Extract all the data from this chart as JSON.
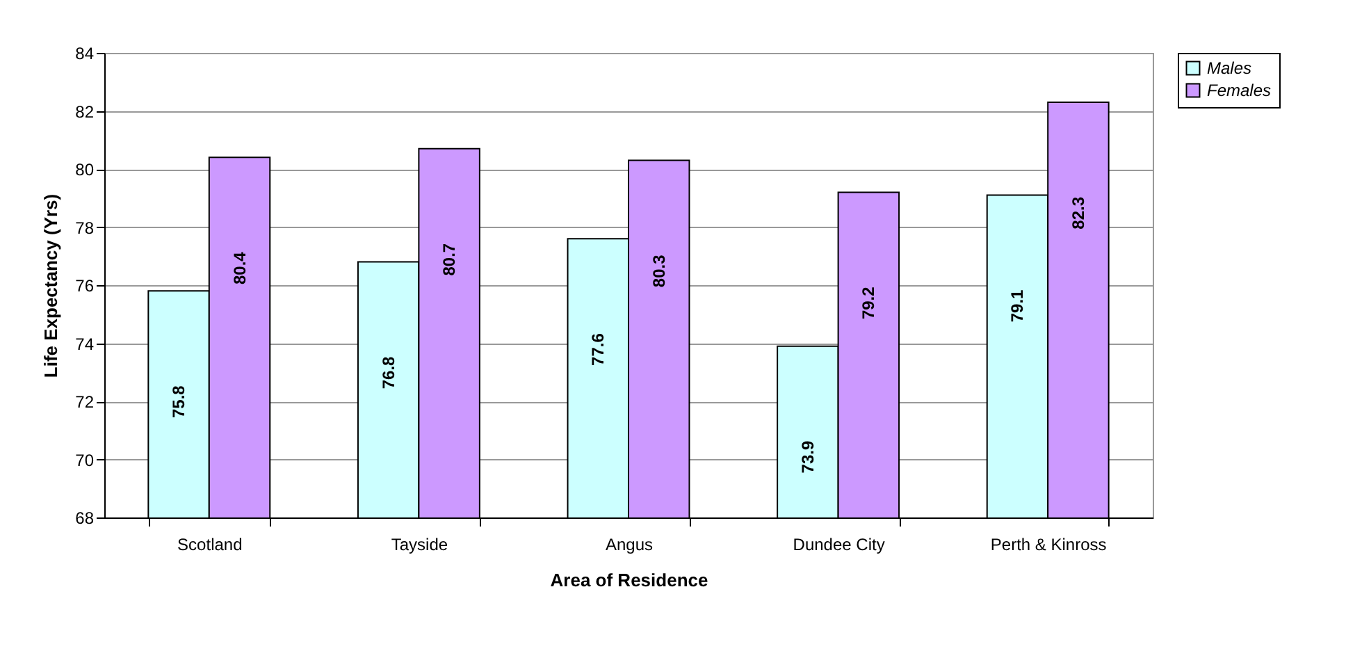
{
  "chart_data": {
    "type": "bar",
    "xlabel": "Area of Residence",
    "ylabel": "Life Expectancy (Yrs)",
    "categories": [
      "Scotland",
      "Tayside",
      "Angus",
      "Dundee City",
      "Perth & Kinross"
    ],
    "series": [
      {
        "name": "Males",
        "color": "#ccffff",
        "values": [
          75.8,
          76.8,
          77.6,
          73.9,
          79.1
        ]
      },
      {
        "name": "Females",
        "color": "#cc99ff",
        "values": [
          80.4,
          80.7,
          80.3,
          79.2,
          82.3
        ]
      }
    ],
    "ylim": [
      68,
      84
    ],
    "yticks": [
      68,
      70,
      72,
      74,
      76,
      78,
      80,
      82,
      84
    ],
    "grid": "y",
    "legend": "right",
    "data_labels": true
  }
}
